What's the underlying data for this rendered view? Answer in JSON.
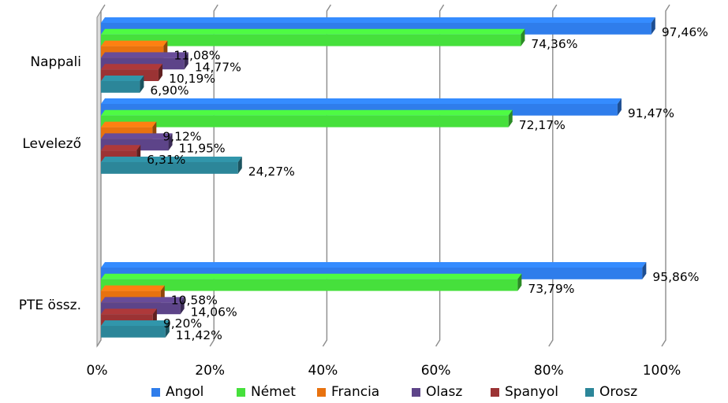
{
  "chart_data": {
    "type": "bar",
    "orientation": "horizontal",
    "three_d": true,
    "categories": [
      "Nappali",
      "Levelező",
      "PTE össz."
    ],
    "series": [
      {
        "name": "Angol",
        "color": "#2F7DEB",
        "values": [
          97.46,
          91.47,
          95.86
        ],
        "labels": [
          "97,46%",
          "91,47%",
          "95,86%"
        ]
      },
      {
        "name": "Német",
        "color": "#46E03C",
        "values": [
          74.36,
          72.17,
          73.79
        ],
        "labels": [
          "74,36%",
          "72,17%",
          "73,79%"
        ]
      },
      {
        "name": "Francia",
        "color": "#E8720F",
        "values": [
          11.08,
          9.12,
          10.58
        ],
        "labels": [
          "11,08%",
          "9,12%",
          "10,58%"
        ]
      },
      {
        "name": "Olasz",
        "color": "#5D4489",
        "values": [
          14.77,
          11.95,
          14.06
        ],
        "labels": [
          "14,77%",
          "11,95%",
          "14,06%"
        ]
      },
      {
        "name": "Spanyol",
        "color": "#9B3334",
        "values": [
          10.19,
          6.31,
          9.2
        ],
        "labels": [
          "10,19%",
          "6,31%",
          "9,20%"
        ]
      },
      {
        "name": "Orosz",
        "color": "#2C8699",
        "values": [
          6.9,
          24.27,
          11.42
        ],
        "labels": [
          "6,90%",
          "24,27%",
          "11,42%"
        ]
      }
    ],
    "x_ticks": [
      "0%",
      "20%",
      "40%",
      "60%",
      "80%",
      "100%"
    ],
    "xlim": [
      0,
      100
    ],
    "grid": true,
    "legend_position": "bottom",
    "title": "",
    "xlabel": "",
    "ylabel": ""
  }
}
